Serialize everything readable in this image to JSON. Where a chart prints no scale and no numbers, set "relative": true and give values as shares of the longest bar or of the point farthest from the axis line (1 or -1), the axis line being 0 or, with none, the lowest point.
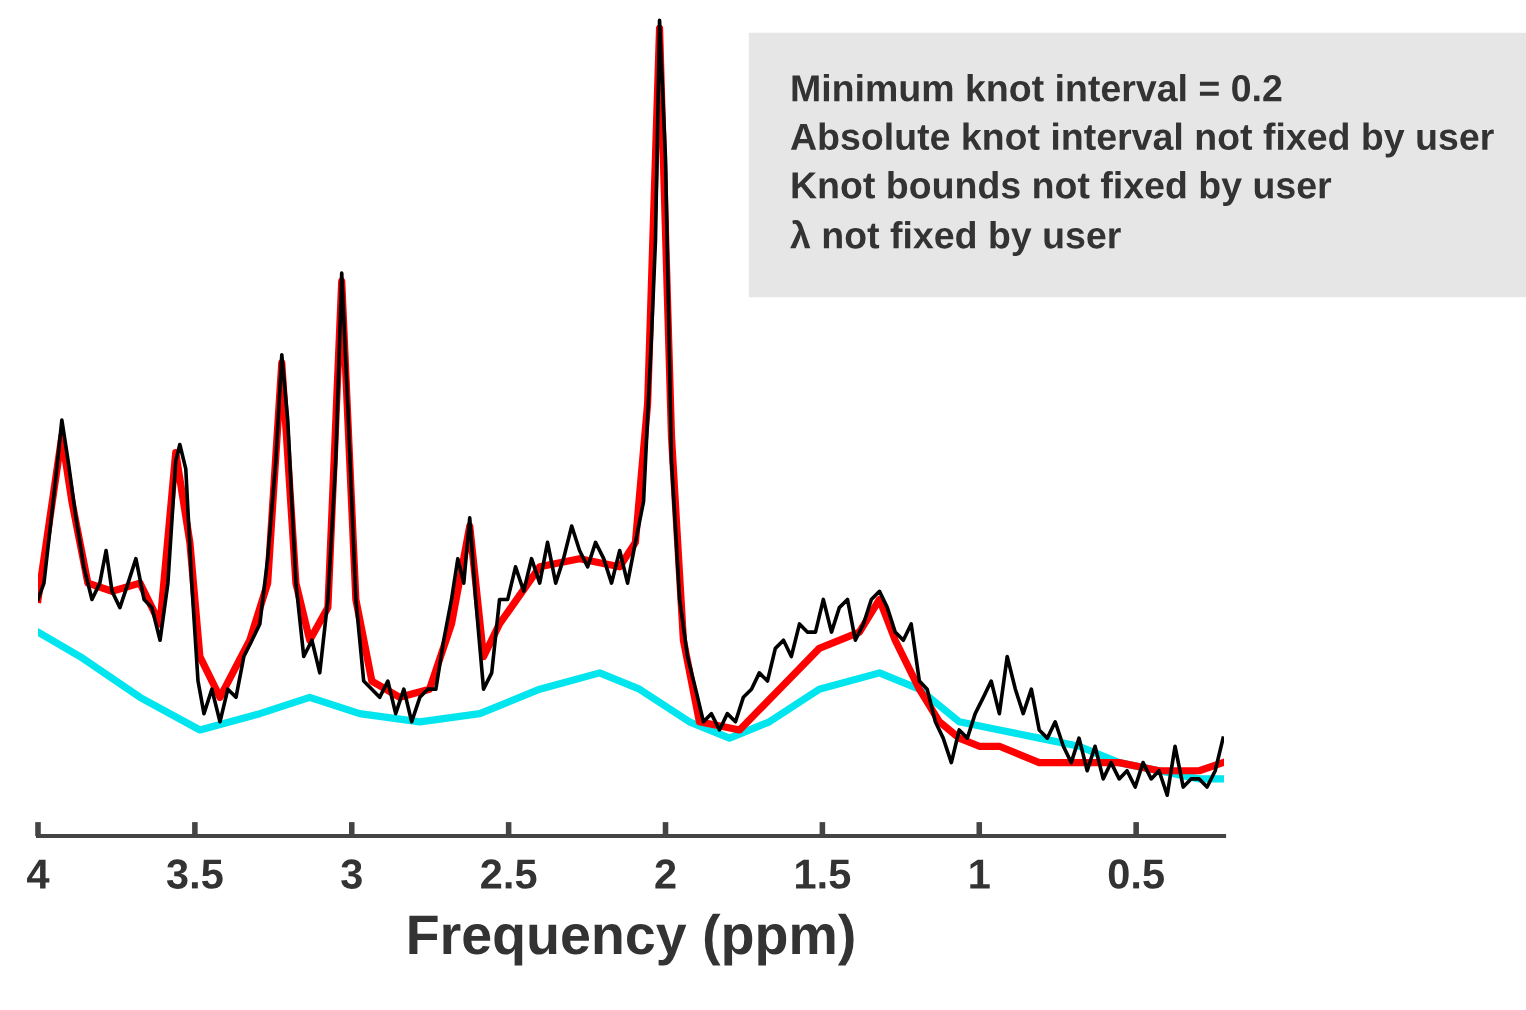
{
  "chart_data": {
    "type": "line",
    "relative": true,
    "xlabel": "Frequency (ppm)",
    "xlim": [
      4,
      0.22
    ],
    "xticks": [
      4,
      3.5,
      3,
      2.5,
      2,
      1.5,
      1,
      0.5
    ],
    "grid": false,
    "marker": "none",
    "line_style": "solid",
    "annotations": [
      "Minimum knot interval = 0.2",
      "Absolute knot interval not fixed by user",
      "Knot bounds not fixed by user",
      "λ not fixed by user"
    ],
    "series": [
      {
        "color": "#00e5ee",
        "x": [
          4.0,
          3.866,
          3.675,
          3.484,
          3.293,
          3.134,
          2.975,
          2.783,
          2.592,
          2.401,
          2.21,
          2.083,
          1.924,
          1.796,
          1.669,
          1.51,
          1.318,
          1.191,
          1.064,
          0.936,
          0.809,
          0.682,
          0.554,
          0.427,
          0.299,
          0.223
        ],
        "values": [
          0.25,
          0.22,
          0.17,
          0.13,
          0.15,
          0.17,
          0.15,
          0.14,
          0.15,
          0.18,
          0.2,
          0.18,
          0.14,
          0.12,
          0.14,
          0.18,
          0.2,
          0.18,
          0.14,
          0.13,
          0.12,
          0.11,
          0.09,
          0.08,
          0.07,
          0.07
        ]
      },
      {
        "color": "#ff0000",
        "x": [
          4.0,
          3.943,
          3.924,
          3.892,
          3.841,
          3.764,
          3.675,
          3.611,
          3.561,
          3.516,
          3.484,
          3.42,
          3.325,
          3.268,
          3.223,
          3.178,
          3.134,
          3.076,
          3.032,
          2.987,
          2.936,
          2.847,
          2.752,
          2.682,
          2.624,
          2.58,
          2.529,
          2.401,
          2.274,
          2.146,
          2.096,
          2.057,
          2.019,
          1.981,
          1.943,
          1.892,
          1.764,
          1.637,
          1.51,
          1.382,
          1.318,
          1.268,
          1.191,
          1.127,
          1.064,
          1.0,
          0.936,
          0.809,
          0.682,
          0.554,
          0.427,
          0.299,
          0.223
        ],
        "values": [
          0.29,
          0.44,
          0.49,
          0.41,
          0.31,
          0.3,
          0.31,
          0.26,
          0.47,
          0.36,
          0.22,
          0.17,
          0.24,
          0.31,
          0.58,
          0.31,
          0.24,
          0.28,
          0.68,
          0.29,
          0.19,
          0.17,
          0.18,
          0.26,
          0.38,
          0.22,
          0.26,
          0.33,
          0.34,
          0.33,
          0.36,
          0.53,
          0.99,
          0.49,
          0.24,
          0.14,
          0.13,
          0.18,
          0.23,
          0.25,
          0.29,
          0.24,
          0.18,
          0.14,
          0.12,
          0.11,
          0.11,
          0.09,
          0.09,
          0.09,
          0.08,
          0.08,
          0.09
        ]
      },
      {
        "color": "#000000",
        "x": [
          4.0,
          3.981,
          3.943,
          3.924,
          3.904,
          3.879,
          3.854,
          3.828,
          3.803,
          3.783,
          3.764,
          3.739,
          3.713,
          3.688,
          3.662,
          3.637,
          3.611,
          3.586,
          3.561,
          3.548,
          3.529,
          3.51,
          3.49,
          3.471,
          3.446,
          3.42,
          3.395,
          3.369,
          3.344,
          3.318,
          3.293,
          3.268,
          3.242,
          3.223,
          3.204,
          3.178,
          3.153,
          3.127,
          3.102,
          3.076,
          3.051,
          3.032,
          3.013,
          2.987,
          2.962,
          2.936,
          2.911,
          2.885,
          2.86,
          2.834,
          2.809,
          2.783,
          2.758,
          2.732,
          2.707,
          2.682,
          2.662,
          2.643,
          2.624,
          2.605,
          2.58,
          2.554,
          2.529,
          2.503,
          2.478,
          2.452,
          2.427,
          2.401,
          2.376,
          2.35,
          2.325,
          2.299,
          2.274,
          2.248,
          2.223,
          2.197,
          2.172,
          2.146,
          2.121,
          2.096,
          2.07,
          2.045,
          2.032,
          2.019,
          2.0,
          1.981,
          1.955,
          1.93,
          1.904,
          1.879,
          1.854,
          1.828,
          1.803,
          1.777,
          1.752,
          1.726,
          1.701,
          1.675,
          1.65,
          1.624,
          1.599,
          1.573,
          1.548,
          1.522,
          1.497,
          1.471,
          1.446,
          1.42,
          1.395,
          1.369,
          1.344,
          1.318,
          1.293,
          1.268,
          1.242,
          1.217,
          1.191,
          1.166,
          1.14,
          1.115,
          1.089,
          1.064,
          1.038,
          1.013,
          0.987,
          0.962,
          0.936,
          0.911,
          0.885,
          0.86,
          0.834,
          0.809,
          0.783,
          0.758,
          0.732,
          0.707,
          0.682,
          0.656,
          0.631,
          0.605,
          0.58,
          0.554,
          0.529,
          0.503,
          0.478,
          0.452,
          0.427,
          0.401,
          0.376,
          0.35,
          0.325,
          0.299,
          0.274,
          0.248,
          0.223
        ],
        "values": [
          0.29,
          0.31,
          0.44,
          0.51,
          0.46,
          0.39,
          0.33,
          0.29,
          0.31,
          0.35,
          0.3,
          0.28,
          0.31,
          0.34,
          0.29,
          0.28,
          0.24,
          0.31,
          0.46,
          0.48,
          0.45,
          0.31,
          0.19,
          0.15,
          0.18,
          0.14,
          0.18,
          0.17,
          0.22,
          0.24,
          0.26,
          0.34,
          0.46,
          0.59,
          0.51,
          0.31,
          0.22,
          0.24,
          0.2,
          0.29,
          0.46,
          0.69,
          0.53,
          0.29,
          0.19,
          0.18,
          0.17,
          0.19,
          0.15,
          0.18,
          0.14,
          0.17,
          0.18,
          0.18,
          0.24,
          0.29,
          0.34,
          0.31,
          0.39,
          0.29,
          0.18,
          0.2,
          0.29,
          0.29,
          0.33,
          0.3,
          0.34,
          0.31,
          0.36,
          0.31,
          0.34,
          0.38,
          0.35,
          0.33,
          0.36,
          0.34,
          0.31,
          0.35,
          0.31,
          0.36,
          0.41,
          0.61,
          0.73,
          1.0,
          0.83,
          0.46,
          0.29,
          0.22,
          0.18,
          0.14,
          0.15,
          0.13,
          0.15,
          0.14,
          0.17,
          0.18,
          0.2,
          0.19,
          0.23,
          0.24,
          0.22,
          0.26,
          0.25,
          0.25,
          0.29,
          0.25,
          0.28,
          0.29,
          0.24,
          0.26,
          0.29,
          0.3,
          0.28,
          0.25,
          0.24,
          0.26,
          0.19,
          0.18,
          0.14,
          0.12,
          0.09,
          0.13,
          0.12,
          0.15,
          0.17,
          0.19,
          0.15,
          0.22,
          0.18,
          0.15,
          0.18,
          0.13,
          0.12,
          0.14,
          0.11,
          0.09,
          0.12,
          0.08,
          0.11,
          0.07,
          0.09,
          0.07,
          0.08,
          0.06,
          0.09,
          0.07,
          0.08,
          0.05,
          0.11,
          0.06,
          0.07,
          0.07,
          0.06,
          0.08,
          0.12
        ]
      }
    ]
  }
}
